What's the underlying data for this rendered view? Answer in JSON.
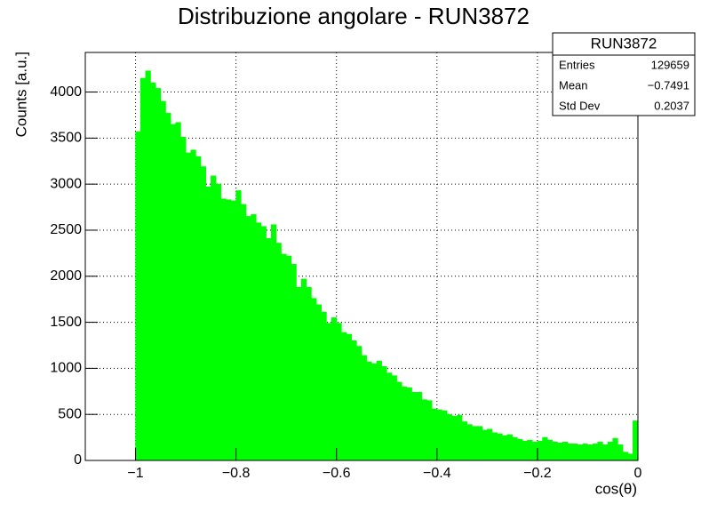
{
  "chart_data": {
    "type": "histogram",
    "title": "Distribuzione angolare - RUN3872",
    "x_label": "cos(θ)",
    "y_label": "Counts [a.u.]",
    "color": "#00ff00",
    "grid": true,
    "bins": [
      -1.1,
      -1.09,
      -1.08,
      -1.07,
      -1.06,
      -1.05,
      -1.04,
      -1.03,
      -1.02,
      -1.01,
      -1.0,
      -0.99,
      -0.98,
      -0.97,
      -0.96,
      -0.95,
      -0.94,
      -0.93,
      -0.92,
      -0.91,
      -0.9,
      -0.89,
      -0.88,
      -0.87,
      -0.86,
      -0.85,
      -0.84,
      -0.83,
      -0.82,
      -0.81,
      -0.8,
      -0.79,
      -0.78,
      -0.77,
      -0.76,
      -0.75,
      -0.74,
      -0.73,
      -0.72,
      -0.71,
      -0.7,
      -0.69,
      -0.68,
      -0.67,
      -0.66,
      -0.65,
      -0.64,
      -0.63,
      -0.62,
      -0.61,
      -0.6,
      -0.59,
      -0.58,
      -0.57,
      -0.56,
      -0.55,
      -0.54,
      -0.53,
      -0.52,
      -0.51,
      -0.5,
      -0.49,
      -0.48,
      -0.47,
      -0.46,
      -0.45,
      -0.44,
      -0.43,
      -0.42,
      -0.41,
      -0.4,
      -0.39,
      -0.38,
      -0.37,
      -0.36,
      -0.35,
      -0.34,
      -0.33,
      -0.32,
      -0.31,
      -0.3,
      -0.29,
      -0.28,
      -0.27,
      -0.26,
      -0.25,
      -0.24,
      -0.23,
      -0.22,
      -0.21,
      -0.2,
      -0.19,
      -0.18,
      -0.17,
      -0.16,
      -0.15,
      -0.14,
      -0.13,
      -0.12,
      -0.11,
      -0.1,
      -0.09,
      -0.08,
      -0.07,
      -0.06,
      -0.05,
      -0.04,
      -0.03,
      -0.02,
      -0.01,
      0
    ],
    "counts": [
      0,
      0,
      0,
      0,
      0,
      0,
      0,
      0,
      0,
      0,
      3570,
      4150,
      4230,
      4100,
      4040,
      3900,
      3770,
      3650,
      3670,
      3510,
      3340,
      3370,
      3300,
      3190,
      2970,
      3090,
      3000,
      2840,
      2830,
      2820,
      2930,
      2780,
      2650,
      2670,
      2580,
      2540,
      2410,
      2560,
      2360,
      2240,
      2220,
      2130,
      1880,
      1970,
      1880,
      1760,
      1690,
      1610,
      1490,
      1550,
      1490,
      1390,
      1370,
      1300,
      1240,
      1140,
      1070,
      1050,
      1080,
      1020,
      950,
      920,
      850,
      800,
      790,
      740,
      740,
      660,
      650,
      560,
      550,
      540,
      500,
      480,
      490,
      420,
      390,
      370,
      370,
      330,
      340,
      300,
      290,
      270,
      280,
      250,
      230,
      210,
      220,
      200,
      210,
      250,
      220,
      200,
      190,
      200,
      180,
      180,
      170,
      180,
      170,
      180,
      200,
      170,
      200,
      240,
      170,
      90,
      70,
      430
    ],
    "xlim": [
      -1.1,
      0
    ],
    "ylim": [
      0,
      4430
    ],
    "xticks": [
      {
        "value": -1,
        "label": "−1"
      },
      {
        "value": -0.8,
        "label": "−0.8"
      },
      {
        "value": -0.6,
        "label": "−0.6"
      },
      {
        "value": -0.4,
        "label": "−0.4"
      },
      {
        "value": -0.2,
        "label": "−0.2"
      },
      0
    ],
    "yticks": [
      0,
      500,
      1000,
      1500,
      2000,
      2500,
      3000,
      3500,
      4000
    ],
    "stats": {
      "title": "RUN3872",
      "rows": [
        [
          "Entries",
          "129659"
        ],
        [
          "Mean",
          "−0.7491"
        ],
        [
          "Std Dev",
          "0.2037"
        ]
      ]
    }
  }
}
